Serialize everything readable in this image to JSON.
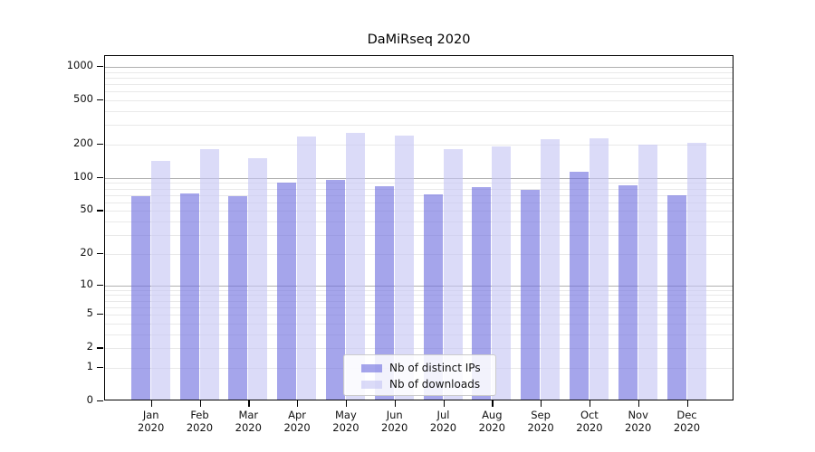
{
  "chart_data": {
    "type": "bar",
    "title": "DaMiRseq 2020",
    "categories": [
      "Jan",
      "Feb",
      "Mar",
      "Apr",
      "May",
      "Jun",
      "Jul",
      "Aug",
      "Sep",
      "Oct",
      "Nov",
      "Dec"
    ],
    "x_year": "2020",
    "series": [
      {
        "name": "Nb of distinct IPs",
        "color": "rgba(110,110,223,0.62)",
        "values": [
          66,
          70,
          66,
          88,
          92,
          81,
          68,
          79,
          75,
          110,
          83,
          67
        ]
      },
      {
        "name": "Nb of downloads",
        "color": "rgba(197,197,243,0.62)",
        "values": [
          137,
          175,
          146,
          230,
          247,
          232,
          176,
          186,
          214,
          221,
          193,
          201
        ]
      }
    ],
    "y_ticks": [
      0,
      1,
      2,
      5,
      10,
      20,
      50,
      100,
      200,
      500,
      1000
    ],
    "y_scale": "log10(value+1)",
    "ylim": [
      0,
      1250
    ],
    "grid": "on",
    "major_grid_values": [
      10,
      100,
      1000
    ],
    "legend_position": "lower-center"
  }
}
